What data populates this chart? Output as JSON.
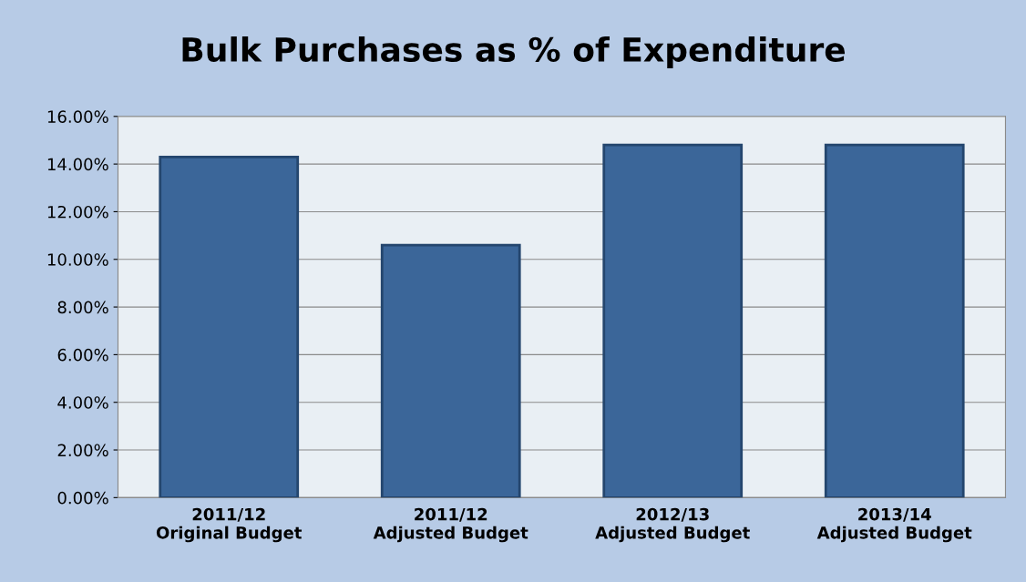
{
  "chart_data": {
    "type": "bar",
    "title": "Bulk Purchases as % of Expenditure",
    "categories": [
      "2011/12\nOriginal Budget",
      "2011/12\nAdjusted Budget",
      "2012/13\nAdjusted Budget",
      "2013/14\nAdjusted Budget"
    ],
    "values": [
      14.3,
      10.6,
      14.8,
      14.8
    ],
    "color": "#3b6699",
    "ylim": [
      0,
      16
    ],
    "yticks": [
      {
        "value": 0,
        "label": "0.00%"
      },
      {
        "value": 2,
        "label": "2.00%"
      },
      {
        "value": 4,
        "label": "4.00%"
      },
      {
        "value": 6,
        "label": "6.00%"
      },
      {
        "value": 8,
        "label": "8.00%"
      },
      {
        "value": 10,
        "label": "10.00%"
      },
      {
        "value": 12,
        "label": "12.00%"
      },
      {
        "value": 14,
        "label": "14.00%"
      },
      {
        "value": 16,
        "label": "16.00%"
      }
    ],
    "grid": "y"
  }
}
